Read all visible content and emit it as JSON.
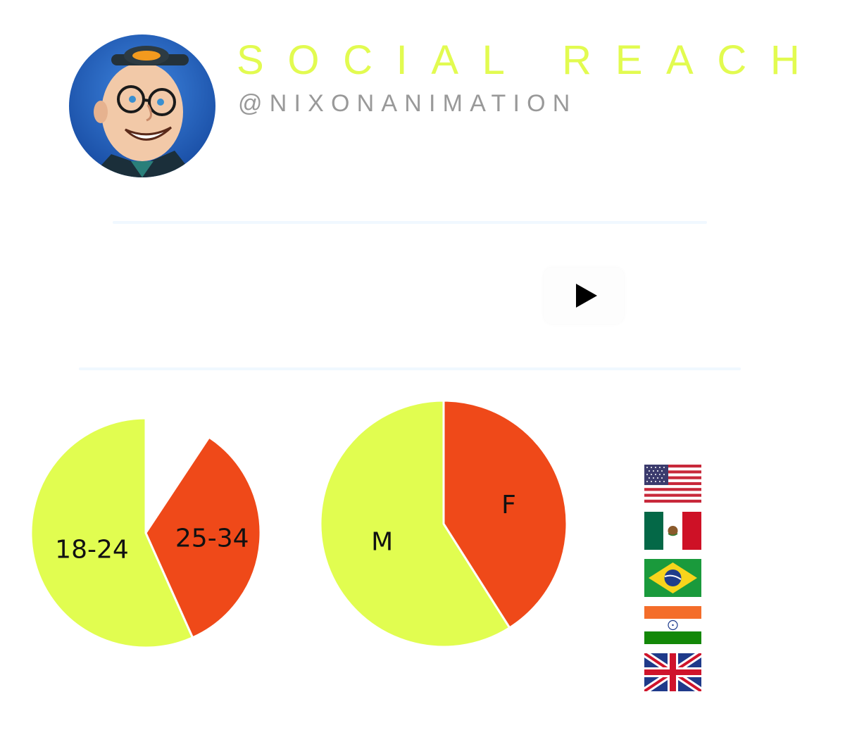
{
  "header": {
    "title": "SOCIAL REACH",
    "handle": "@NIXONANIMATION",
    "avatar_icon": "cartoon-avatar-icon"
  },
  "media": {
    "play_icon": "play-icon"
  },
  "colors": {
    "title": "#e2fb50",
    "handle": "#999999",
    "accent_yellow": "#e1fd50",
    "accent_orange": "#ef4919",
    "rule": "#f0f8ff",
    "avatar_bg": "#1e5fbf"
  },
  "chart_data": [
    {
      "type": "pie",
      "categories": [
        "18-24",
        "25-34"
      ],
      "values": [
        60,
        34
      ],
      "colors": [
        "#e1fd50",
        "#ef4919"
      ]
    },
    {
      "type": "pie",
      "categories": [
        "M",
        "F"
      ],
      "values": [
        59,
        41
      ],
      "colors": [
        "#e1fd50",
        "#ef4919"
      ]
    }
  ],
  "countries": [
    {
      "name": "USA",
      "icon": "us-flag-icon"
    },
    {
      "name": "Mexico",
      "icon": "mexico-flag-icon"
    },
    {
      "name": "Brazil",
      "icon": "brazil-flag-icon"
    },
    {
      "name": "India",
      "icon": "india-flag-icon"
    },
    {
      "name": "UK",
      "icon": "uk-flag-icon"
    }
  ]
}
